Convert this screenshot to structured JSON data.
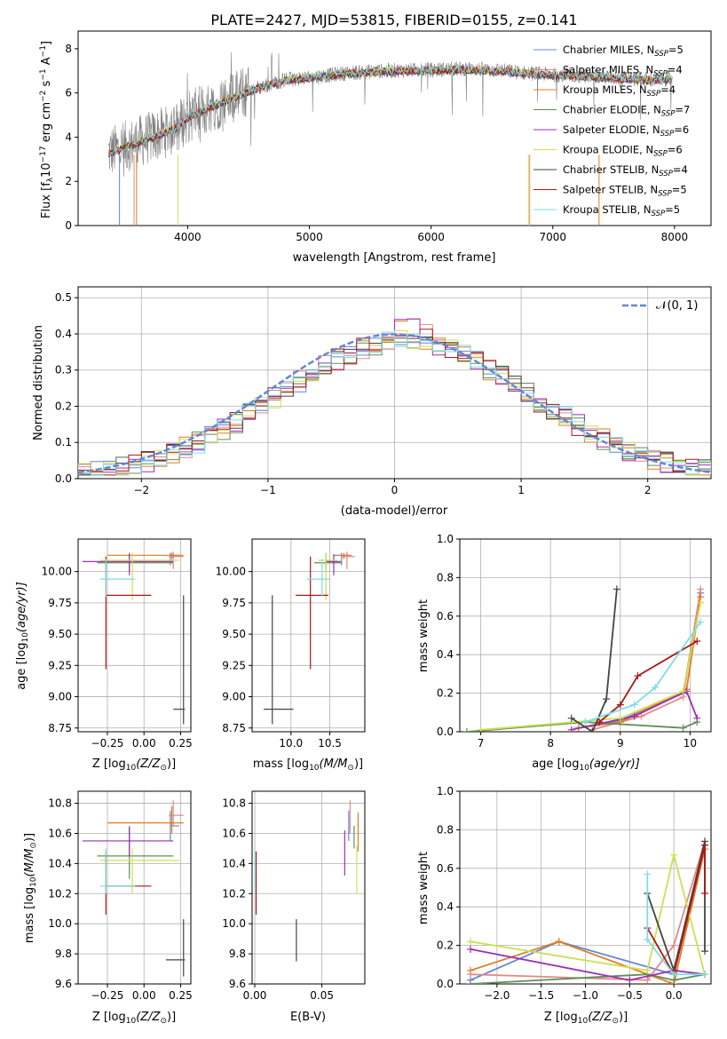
{
  "figure_title": "PLATE=2427, MJD=53815, FIBERID=0155, z=0.141",
  "chart_data": [
    {
      "type": "line",
      "panel": "spectrum",
      "xlabel": "wavelength [Angstrom, rest frame]",
      "ylabel": "Flux [f",
      "ylabel_sub": "λ",
      "ylabel_rest": "10",
      "ylabel_exp1": "−17",
      "ylabel_units": "erg cm",
      "ylabel_exp2": "−2",
      "ylabel_s": "s",
      "ylabel_exp3": "−1",
      "ylabel_A": "A",
      "ylabel_exp4": "−1",
      "ylabel_close": "]",
      "xlim": [
        3100,
        8300
      ],
      "ylim": [
        0,
        8.8
      ],
      "xticks": [
        4000,
        5000,
        6000,
        7000,
        8000
      ],
      "yticks": [
        0,
        2,
        4,
        6,
        8
      ],
      "grid": false,
      "legend_position": "top-right",
      "data_color": "#808080",
      "anchor_x": [
        3350,
        3500,
        3700,
        3900,
        4000,
        4200,
        4500,
        4800,
        5000,
        5300,
        5600,
        6000,
        6300,
        6600,
        6900,
        7200,
        7500,
        7800,
        7950
      ],
      "anchor_y": [
        3.3,
        3.6,
        4.0,
        4.4,
        4.9,
        5.4,
        6.1,
        6.6,
        6.7,
        6.9,
        7.0,
        7.05,
        7.1,
        7.0,
        6.85,
        6.8,
        6.7,
        6.6,
        6.65
      ],
      "series": [
        {
          "name": "Chabrier MILES",
          "nssp": "5",
          "color": "#6486d6"
        },
        {
          "name": "Salpeter MILES",
          "nssp": "4",
          "color": "#e08a8a"
        },
        {
          "name": "Kroupa MILES",
          "nssp": "4",
          "color": "#e07d20"
        },
        {
          "name": "Chabrier ELODIE",
          "nssp": "7",
          "color": "#5f8f56"
        },
        {
          "name": "Salpeter ELODIE",
          "nssp": "6",
          "color": "#9b2fb3"
        },
        {
          "name": "Kroupa ELODIE",
          "nssp": "6",
          "color": "#cde052"
        },
        {
          "name": "Chabrier STELIB",
          "nssp": "4",
          "color": "#444444"
        },
        {
          "name": "Salpeter STELIB",
          "nssp": "5",
          "color": "#a81818"
        },
        {
          "name": "Kroupa STELIB",
          "nssp": "5",
          "color": "#7fdde0"
        }
      ],
      "legend_n": "N",
      "legend_n_sub": "SSP"
    },
    {
      "type": "line",
      "panel": "residuals",
      "xlabel": "(data-model)/error",
      "ylabel": "Normed distribution",
      "xlim": [
        -2.5,
        2.5
      ],
      "ylim": [
        0,
        0.53
      ],
      "xticks": [
        -2,
        -1,
        0,
        1,
        2
      ],
      "xtick_labels": [
        "−2",
        "−1",
        "0",
        "1",
        "2"
      ],
      "yticks": [
        0,
        0.1,
        0.2,
        0.3,
        0.4,
        0.5
      ],
      "ytick_labels": [
        "0.0",
        "0.1",
        "0.2",
        "0.3",
        "0.4",
        "0.5"
      ],
      "grid": true,
      "legend_position": "top-right",
      "legend_label": "𝒩(0, 1)",
      "normal_color": "#6486d6",
      "bin_width": 0.1
    },
    {
      "type": "scatter",
      "panel": "age-vs-Z",
      "xlabel": "Z [log",
      "xlabel_sub": "10",
      "xlabel_rest": "(Z/Z",
      "xlabel_sub2": "⊙",
      "xlabel_close": ")]",
      "ylabel": "age  [log",
      "ylabel_sub": "10",
      "ylabel_rest": "(age/yr)]",
      "xlim": [
        -0.45,
        0.32
      ],
      "ylim": [
        8.72,
        10.26
      ],
      "xticks": [
        -0.25,
        0.0,
        0.25
      ],
      "xtick_labels": [
        "−0.25",
        "0.00",
        "0.25"
      ],
      "yticks": [
        8.75,
        9.0,
        9.25,
        9.5,
        9.75,
        10.0
      ],
      "ytick_labels": [
        "8.75",
        "9.00",
        "9.25",
        "9.50",
        "9.75",
        "10.00"
      ],
      "grid": true,
      "points": [
        {
          "series": 0,
          "x": 0.18,
          "y": 10.13,
          "ex": [
            0.18,
            0.24
          ],
          "ey": [
            10.05,
            10.15
          ]
        },
        {
          "series": 1,
          "x": 0.2,
          "y": 10.12,
          "ex": [
            0.17,
            0.27
          ],
          "ey": [
            10.02,
            10.16
          ]
        },
        {
          "series": 2,
          "x": 0.19,
          "y": 10.13,
          "ex": [
            -0.25,
            0.27
          ],
          "ey": [
            10.1,
            10.15
          ]
        },
        {
          "series": 3,
          "x": -0.1,
          "y": 10.07,
          "ex": [
            -0.32,
            0.2
          ],
          "ey": [
            10.0,
            10.15
          ]
        },
        {
          "series": 4,
          "x": -0.1,
          "y": 10.08,
          "ex": [
            -0.42,
            0.2
          ],
          "ey": [
            9.97,
            10.14
          ]
        },
        {
          "series": 5,
          "x": -0.08,
          "y": 10.09,
          "ex": [
            -0.3,
            0.24
          ],
          "ey": [
            9.77,
            10.15
          ]
        },
        {
          "series": 6,
          "x": 0.27,
          "y": 8.9,
          "ex": [
            0.2,
            0.28
          ],
          "ey": [
            8.78,
            9.81
          ]
        },
        {
          "series": 7,
          "x": -0.26,
          "y": 9.81,
          "ex": [
            -0.26,
            0.05
          ],
          "ey": [
            9.22,
            10.12
          ]
        },
        {
          "series": 8,
          "x": -0.26,
          "y": 9.94,
          "ex": [
            -0.3,
            -0.06
          ],
          "ey": [
            9.8,
            10.1
          ]
        }
      ]
    },
    {
      "type": "scatter",
      "panel": "age-vs-mass",
      "xlabel": "mass [log",
      "xlabel_sub": "10",
      "xlabel_rest": "(M/M",
      "xlabel_sub2": "⊙",
      "xlabel_close": ")]",
      "xlim": [
        9.5,
        10.95
      ],
      "ylim": [
        8.72,
        10.26
      ],
      "xticks": [
        10.0,
        10.5
      ],
      "xtick_labels": [
        "10.0",
        "10.5"
      ],
      "yticks": [
        8.75,
        9.0,
        9.25,
        9.5,
        9.75,
        10.0
      ],
      "ytick_labels": [
        "8.75",
        "9.00",
        "9.25",
        "9.50",
        "9.75",
        "10.00"
      ],
      "grid": true,
      "points": [
        {
          "series": 0,
          "x": 10.65,
          "y": 10.13,
          "ex": [
            10.55,
            10.75
          ],
          "ey": [
            10.05,
            10.15
          ]
        },
        {
          "series": 1,
          "x": 10.72,
          "y": 10.12,
          "ex": [
            10.65,
            10.82
          ],
          "ey": [
            10.02,
            10.16
          ]
        },
        {
          "series": 2,
          "x": 10.68,
          "y": 10.13,
          "ex": [
            10.6,
            10.78
          ],
          "ey": [
            10.1,
            10.15
          ]
        },
        {
          "series": 3,
          "x": 10.45,
          "y": 10.07,
          "ex": [
            10.3,
            10.65
          ],
          "ey": [
            10.0,
            10.15
          ]
        },
        {
          "series": 4,
          "x": 10.55,
          "y": 10.08,
          "ex": [
            10.45,
            10.64
          ],
          "ey": [
            9.97,
            10.14
          ]
        },
        {
          "series": 5,
          "x": 10.45,
          "y": 10.09,
          "ex": [
            10.35,
            10.6
          ],
          "ey": [
            9.77,
            10.15
          ]
        },
        {
          "series": 6,
          "x": 9.76,
          "y": 8.9,
          "ex": [
            9.65,
            10.03
          ],
          "ey": [
            8.78,
            9.81
          ]
        },
        {
          "series": 7,
          "x": 10.25,
          "y": 9.81,
          "ex": [
            10.06,
            10.48
          ],
          "ey": [
            9.22,
            10.12
          ]
        },
        {
          "series": 8,
          "x": 10.4,
          "y": 9.94,
          "ex": [
            10.2,
            10.5
          ],
          "ey": [
            9.8,
            10.1
          ]
        }
      ]
    },
    {
      "type": "line",
      "panel": "mass-weight-vs-age",
      "xlabel": "age  [log",
      "xlabel_sub": "10",
      "xlabel_rest": "(age/yr)]",
      "ylabel": "mass weight",
      "xlim": [
        6.7,
        10.3
      ],
      "ylim": [
        0,
        1.0
      ],
      "xticks": [
        7,
        8,
        9,
        10
      ],
      "yticks": [
        0,
        0.2,
        0.4,
        0.6,
        0.8,
        1.0
      ],
      "ytick_labels": [
        "0.0",
        "0.2",
        "0.4",
        "0.6",
        "0.8",
        "1.0"
      ],
      "grid": true,
      "series": [
        {
          "series": 0,
          "x": [
            8.4,
            9.0,
            9.9,
            10.15
          ],
          "y": [
            0.02,
            0.06,
            0.2,
            0.72
          ]
        },
        {
          "series": 1,
          "x": [
            8.6,
            9.3,
            9.9,
            10.15
          ],
          "y": [
            0.01,
            0.08,
            0.18,
            0.74
          ]
        },
        {
          "series": 2,
          "x": [
            8.4,
            9.0,
            9.95,
            10.15
          ],
          "y": [
            0.02,
            0.05,
            0.22,
            0.7
          ]
        },
        {
          "series": 3,
          "x": [
            6.8,
            8.5,
            9.9,
            10.1
          ],
          "y": [
            0.0,
            0.05,
            0.02,
            0.05
          ]
        },
        {
          "series": 4,
          "x": [
            8.3,
            9.2,
            9.95,
            10.1
          ],
          "y": [
            0.01,
            0.08,
            0.21,
            0.07
          ]
        },
        {
          "series": 5,
          "x": [
            7.0,
            9.0,
            9.9,
            10.15
          ],
          "y": [
            0.01,
            0.07,
            0.21,
            0.67
          ]
        },
        {
          "series": 6,
          "x": [
            8.3,
            8.6,
            8.8,
            8.95
          ],
          "y": [
            0.07,
            0.0,
            0.17,
            0.74
          ]
        },
        {
          "series": 7,
          "x": [
            8.7,
            9.0,
            9.25,
            10.1
          ],
          "y": [
            0.05,
            0.14,
            0.29,
            0.47
          ]
        },
        {
          "series": 8,
          "x": [
            8.5,
            9.2,
            9.5,
            10.15
          ],
          "y": [
            0.05,
            0.14,
            0.23,
            0.57
          ]
        }
      ]
    },
    {
      "type": "scatter",
      "panel": "mass-vs-Z",
      "xlabel": "Z [log",
      "xlabel_sub": "10",
      "xlabel_rest": "(Z/Z",
      "xlabel_sub2": "⊙",
      "xlabel_close": ")]",
      "ylabel": "mass [log",
      "ylabel_sub": "10",
      "ylabel_rest": "(M/M",
      "ylabel_sub2": "⊙",
      "ylabel_close": ")]",
      "xlim": [
        -0.45,
        0.32
      ],
      "ylim": [
        9.6,
        10.88
      ],
      "xticks": [
        -0.25,
        0.0,
        0.25
      ],
      "xtick_labels": [
        "−0.25",
        "0.00",
        "0.25"
      ],
      "yticks": [
        9.6,
        9.8,
        10.0,
        10.2,
        10.4,
        10.6,
        10.8
      ],
      "ytick_labels": [
        "9.6",
        "9.8",
        "10.0",
        "10.2",
        "10.4",
        "10.6",
        "10.8"
      ],
      "grid": true,
      "points": [
        {
          "series": 0,
          "x": 0.18,
          "y": 10.65,
          "ex": [
            0.18,
            0.24
          ],
          "ey": [
            10.55,
            10.75
          ]
        },
        {
          "series": 1,
          "x": 0.2,
          "y": 10.72,
          "ex": [
            0.17,
            0.27
          ],
          "ey": [
            10.65,
            10.82
          ]
        },
        {
          "series": 2,
          "x": 0.19,
          "y": 10.67,
          "ex": [
            -0.25,
            0.27
          ],
          "ey": [
            10.6,
            10.78
          ]
        },
        {
          "series": 3,
          "x": -0.1,
          "y": 10.45,
          "ex": [
            -0.32,
            0.2
          ],
          "ey": [
            10.3,
            10.65
          ]
        },
        {
          "series": 4,
          "x": -0.1,
          "y": 10.55,
          "ex": [
            -0.42,
            0.2
          ],
          "ey": [
            10.45,
            10.64
          ]
        },
        {
          "series": 5,
          "x": -0.08,
          "y": 10.42,
          "ex": [
            -0.3,
            0.24
          ],
          "ey": [
            10.2,
            10.5
          ]
        },
        {
          "series": 6,
          "x": 0.27,
          "y": 9.76,
          "ex": [
            0.15,
            0.28
          ],
          "ey": [
            9.65,
            10.03
          ]
        },
        {
          "series": 7,
          "x": -0.26,
          "y": 10.25,
          "ex": [
            -0.26,
            0.05
          ],
          "ey": [
            10.06,
            10.48
          ]
        },
        {
          "series": 8,
          "x": -0.26,
          "y": 10.25,
          "ex": [
            -0.3,
            -0.06
          ],
          "ey": [
            10.2,
            10.5
          ]
        }
      ]
    },
    {
      "type": "scatter",
      "panel": "mass-vs-EBV",
      "xlabel": "E(B-V)",
      "xlim": [
        -0.002,
        0.082
      ],
      "ylim": [
        9.6,
        10.88
      ],
      "xticks": [
        0.0,
        0.05
      ],
      "xtick_labels": [
        "0.00",
        "0.05"
      ],
      "yticks": [
        9.6,
        9.8,
        10.0,
        10.2,
        10.4,
        10.6,
        10.8
      ],
      "ytick_labels": [
        "9.6",
        "9.8",
        "10.0",
        "10.2",
        "10.4",
        "10.6",
        "10.8"
      ],
      "grid": true,
      "points": [
        {
          "series": 0,
          "x": 0.07,
          "y": 10.65,
          "ey": [
            10.55,
            10.75
          ]
        },
        {
          "series": 1,
          "x": 0.071,
          "y": 10.72,
          "ey": [
            10.6,
            10.82
          ]
        },
        {
          "series": 2,
          "x": 0.077,
          "y": 10.67,
          "ey": [
            10.48,
            10.74
          ]
        },
        {
          "series": 3,
          "x": 0.074,
          "y": 10.6,
          "ey": [
            10.5,
            10.65
          ]
        },
        {
          "series": 4,
          "x": 0.067,
          "y": 10.55,
          "ey": [
            10.32,
            10.62
          ]
        },
        {
          "series": 5,
          "x": 0.076,
          "y": 10.4,
          "ey": [
            10.2,
            10.52
          ]
        },
        {
          "series": 6,
          "x": 0.031,
          "y": 9.85,
          "ey": [
            9.75,
            10.03
          ]
        },
        {
          "series": 7,
          "x": 0.001,
          "y": 10.2,
          "ey": [
            10.06,
            10.48
          ]
        },
        {
          "series": 8,
          "x": 0.0,
          "y": 10.35,
          "ey": [
            10.2,
            10.5
          ]
        }
      ]
    },
    {
      "type": "line",
      "panel": "mass-weight-vs-Z",
      "xlabel": "Z [log",
      "xlabel_sub": "10",
      "xlabel_rest": "(Z/Z",
      "xlabel_sub2": "⊙",
      "xlabel_close": ")]",
      "ylabel": "mass weight",
      "xlim": [
        -2.42,
        0.42
      ],
      "ylim": [
        0,
        1.0
      ],
      "xticks": [
        -2.0,
        -1.5,
        -1.0,
        -0.5,
        0.0
      ],
      "xtick_labels": [
        "−2.0",
        "−1.5",
        "−1.0",
        "−0.5",
        "0.0"
      ],
      "yticks": [
        0,
        0.2,
        0.4,
        0.6,
        0.8,
        1.0
      ],
      "ytick_labels": [
        "0.0",
        "0.2",
        "0.4",
        "0.6",
        "0.8",
        "1.0"
      ],
      "grid": true,
      "series": [
        {
          "series": 0,
          "x": [
            -2.3,
            -1.3,
            0.0,
            0.35
          ],
          "y": [
            0.02,
            0.22,
            0.05,
            0.72
          ]
        },
        {
          "series": 1,
          "x": [
            -2.3,
            -0.3,
            0.0,
            0.35
          ],
          "y": [
            0.05,
            0.02,
            0.2,
            0.74
          ]
        },
        {
          "series": 2,
          "x": [
            -2.3,
            -1.3,
            0.0,
            0.35
          ],
          "y": [
            0.07,
            0.22,
            0.0,
            0.7
          ]
        },
        {
          "series": 3,
          "x": [
            -2.3,
            -0.3,
            0.0,
            0.35
          ],
          "y": [
            0.0,
            0.05,
            0.02,
            0.05
          ]
        },
        {
          "series": 4,
          "x": [
            -2.3,
            -0.5,
            0.0,
            0.35
          ],
          "y": [
            0.18,
            0.02,
            0.07,
            0.05
          ]
        },
        {
          "series": 5,
          "x": [
            -2.3,
            -0.3,
            0.0,
            0.35
          ],
          "y": [
            0.22,
            0.07,
            0.67,
            0.05
          ]
        },
        {
          "series": 6,
          "x": [
            -0.3,
            0.0,
            0.35,
            0.35
          ],
          "y": [
            0.47,
            0.07,
            0.74,
            0.17
          ]
        },
        {
          "series": 7,
          "x": [
            -0.3,
            0.0,
            0.35,
            0.35
          ],
          "y": [
            0.29,
            0.05,
            0.72,
            0.47
          ]
        },
        {
          "series": 8,
          "x": [
            -0.3,
            -0.3,
            0.0,
            0.35
          ],
          "y": [
            0.57,
            0.23,
            0.05,
            0.05
          ]
        }
      ]
    }
  ]
}
